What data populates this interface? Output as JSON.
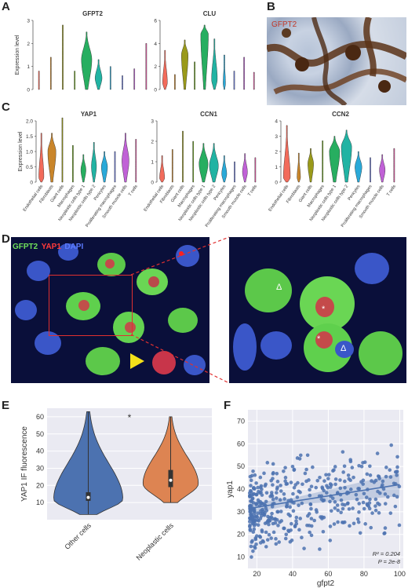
{
  "panels": {
    "A": {
      "letter": "A"
    },
    "B": {
      "letter": "B",
      "stain_label": "GFPT2"
    },
    "C": {
      "letter": "C"
    },
    "D": {
      "letter": "D",
      "legend": [
        {
          "text": "GFPT2",
          "color": "#6fe05b"
        },
        {
          "text": "YAP1",
          "color": "#ff3a3a"
        },
        {
          "text": "DAPI",
          "color": "#5b7bff"
        }
      ],
      "markers": [
        "Δ",
        "*",
        "*",
        "Δ"
      ]
    },
    "E": {
      "letter": "E",
      "significance": "*"
    },
    "F": {
      "letter": "F",
      "annotation_r2": "R² = 0.204",
      "annotation_p": "P = 2e-8"
    }
  },
  "chart_data": [
    {
      "id": "A1",
      "type": "violin",
      "title": "GFPT2",
      "ylabel": "Expression level",
      "ylim": [
        0,
        3
      ],
      "yticks": [
        0,
        1,
        2,
        3
      ],
      "groups": [
        {
          "color": "#f26b5b",
          "max": 0.8,
          "width": 0.05
        },
        {
          "color": "#c9852a",
          "max": 1.4,
          "width": 0.05
        },
        {
          "color": "#9a9a1a",
          "max": 2.8,
          "width": 0.05
        },
        {
          "color": "#6aa61a",
          "max": 0.8,
          "width": 0.05
        },
        {
          "color": "#27ae60",
          "max": 2.5,
          "width": 0.9,
          "mode": 1.3
        },
        {
          "color": "#21b3a3",
          "max": 1.3,
          "width": 0.6,
          "mode": 0.5
        },
        {
          "color": "#2aa9d8",
          "max": 1.0,
          "width": 0.05
        },
        {
          "color": "#6f7fe0",
          "max": 0.6,
          "width": 0.05
        },
        {
          "color": "#c061d6",
          "max": 0.9,
          "width": 0.05
        },
        {
          "color": "#e05aa2",
          "max": 2.0,
          "width": 0.05
        }
      ]
    },
    {
      "id": "A2",
      "type": "violin",
      "title": "CLU",
      "ylabel": "",
      "ylim": [
        0,
        6
      ],
      "yticks": [
        0,
        2,
        4,
        6
      ],
      "groups": [
        {
          "color": "#f26b5b",
          "max": 3.4,
          "width": 0.5,
          "mode": 0.6
        },
        {
          "color": "#c9852a",
          "max": 1.3,
          "width": 0.05
        },
        {
          "color": "#9a9a1a",
          "max": 4.3,
          "width": 0.7,
          "mode": 3.0
        },
        {
          "color": "#6aa61a",
          "max": 2.4,
          "width": 0.05
        },
        {
          "color": "#27ae60",
          "max": 5.6,
          "width": 0.8,
          "mode": 4.8
        },
        {
          "color": "#21b3a3",
          "max": 4.4,
          "width": 0.6,
          "mode": 0.9
        },
        {
          "color": "#2aa9d8",
          "max": 3.0,
          "width": 0.25,
          "mode": 0.5
        },
        {
          "color": "#6f7fe0",
          "max": 1.6,
          "width": 0.05
        },
        {
          "color": "#c061d6",
          "max": 2.8,
          "width": 0.05
        },
        {
          "color": "#e05aa2",
          "max": 1.5,
          "width": 0.05
        }
      ]
    },
    {
      "id": "C1",
      "type": "violin",
      "title": "YAP1",
      "ylabel": "Expression level",
      "ylim": [
        0,
        2
      ],
      "yticks": [
        0,
        0.5,
        1.0,
        1.5,
        2.0
      ],
      "ytick_labels": [
        "0",
        "0.5",
        "1.0",
        "1.5",
        "2.0"
      ],
      "categories": [
        "Endothelial cells",
        "Fibroblasts",
        "Giant cells",
        "Macrophages",
        "Neoplastic cells type 1",
        "Neoplastic cells type 2",
        "Pericytes",
        "Proliferating macrophages",
        "Smooth muscle cells",
        "T cells"
      ],
      "groups": [
        {
          "color": "#f26b5b",
          "max": 1.6,
          "width": 0.5,
          "mode": 0.15
        },
        {
          "color": "#c9852a",
          "max": 1.6,
          "width": 0.8,
          "mode": 1.0
        },
        {
          "color": "#9a9a1a",
          "max": 2.1,
          "width": 0.05
        },
        {
          "color": "#6aa61a",
          "max": 1.2,
          "width": 0.05
        },
        {
          "color": "#27ae60",
          "max": 0.9,
          "width": 0.5,
          "mode": 0.4
        },
        {
          "color": "#21b3a3",
          "max": 1.3,
          "width": 0.5,
          "mode": 0.5
        },
        {
          "color": "#2aa9d8",
          "max": 1.0,
          "width": 0.6,
          "mode": 0.5
        },
        {
          "color": "#6f7fe0",
          "max": 1.0,
          "width": 0.05
        },
        {
          "color": "#c061d6",
          "max": 1.6,
          "width": 0.7,
          "mode": 0.7
        },
        {
          "color": "#e05aa2",
          "max": 1.4,
          "width": 0.05
        }
      ]
    },
    {
      "id": "C2",
      "type": "violin",
      "title": "CCN1",
      "ylabel": "",
      "ylim": [
        0,
        3
      ],
      "yticks": [
        0,
        1,
        2,
        3
      ],
      "categories": [
        "Endothelial cells",
        "Fibroblasts",
        "Giant cells",
        "Macrophages",
        "Neoplastic cells type 1",
        "Neoplastic cells type 2",
        "Pericytes",
        "Proliferating macrophages",
        "Smooth muscle cells",
        "T cells"
      ],
      "groups": [
        {
          "color": "#f26b5b",
          "max": 1.3,
          "width": 0.5,
          "mode": 0.2
        },
        {
          "color": "#c9852a",
          "max": 1.6,
          "width": 0.05
        },
        {
          "color": "#9a9a1a",
          "max": 2.5,
          "width": 0.05
        },
        {
          "color": "#6aa61a",
          "max": 2.0,
          "width": 0.05
        },
        {
          "color": "#27ae60",
          "max": 1.9,
          "width": 0.9,
          "mode": 0.9
        },
        {
          "color": "#21b3a3",
          "max": 1.9,
          "width": 0.9,
          "mode": 0.8
        },
        {
          "color": "#2aa9d8",
          "max": 1.3,
          "width": 0.5,
          "mode": 0.4
        },
        {
          "color": "#6f7fe0",
          "max": 1.0,
          "width": 0.05
        },
        {
          "color": "#c061d6",
          "max": 1.4,
          "width": 0.5,
          "mode": 0.5
        },
        {
          "color": "#e05aa2",
          "max": 1.2,
          "width": 0.05
        }
      ]
    },
    {
      "id": "C3",
      "type": "violin",
      "title": "CCN2",
      "ylabel": "",
      "ylim": [
        0,
        4
      ],
      "yticks": [
        0,
        1,
        2,
        3,
        4
      ],
      "categories": [
        "Endothelial cells",
        "Fibroblasts",
        "Giant cells",
        "Macrophages",
        "Neoplastic cells type 1",
        "Neoplastic cells type 2",
        "Pericytes",
        "Proliferating macrophages",
        "Smooth muscle cells",
        "T cells"
      ],
      "groups": [
        {
          "color": "#f26b5b",
          "max": 3.7,
          "width": 0.6,
          "mode": 0.3
        },
        {
          "color": "#c9852a",
          "max": 1.9,
          "width": 0.3,
          "mode": 0.3
        },
        {
          "color": "#9a9a1a",
          "max": 2.2,
          "width": 0.5,
          "mode": 1.2
        },
        {
          "color": "#6aa61a",
          "max": 2.7,
          "width": 0.05
        },
        {
          "color": "#27ae60",
          "max": 3.0,
          "width": 0.9,
          "mode": 2.0
        },
        {
          "color": "#21b3a3",
          "max": 3.4,
          "width": 0.9,
          "mode": 2.3
        },
        {
          "color": "#2aa9d8",
          "max": 2.0,
          "width": 0.6,
          "mode": 1.0
        },
        {
          "color": "#6f7fe0",
          "max": 1.6,
          "width": 0.05
        },
        {
          "color": "#c061d6",
          "max": 1.8,
          "width": 0.5,
          "mode": 0.8
        },
        {
          "color": "#e05aa2",
          "max": 2.2,
          "width": 0.05
        }
      ]
    },
    {
      "id": "E",
      "type": "violin",
      "title": "",
      "ylabel": "YAP1 IF fluorescence",
      "ylim": [
        0,
        65
      ],
      "yticks": [
        10,
        20,
        30,
        40,
        50,
        60
      ],
      "categories": [
        "Other cells",
        "Neoplastic cells"
      ],
      "grid": true,
      "groups": [
        {
          "color": "#4c72b0",
          "min": 3,
          "max": 63,
          "median": 13,
          "q1": 11,
          "q3": 16,
          "mode": 12,
          "width": 1.0
        },
        {
          "color": "#dd8452",
          "min": 10,
          "max": 60,
          "median": 23,
          "q1": 19,
          "q3": 29,
          "mode": 21,
          "width": 0.8
        }
      ]
    },
    {
      "id": "F",
      "type": "scatter",
      "xlabel": "gfpt2",
      "ylabel": "yap1",
      "xlim": [
        15,
        102
      ],
      "ylim": [
        5,
        75
      ],
      "xticks": [
        20,
        40,
        60,
        80,
        100
      ],
      "yticks": [
        10,
        20,
        30,
        40,
        50,
        60,
        70
      ],
      "grid": true,
      "regression": {
        "intercept": 29.5,
        "slope": 0.125
      },
      "point_color": "#4c72b0"
    }
  ]
}
